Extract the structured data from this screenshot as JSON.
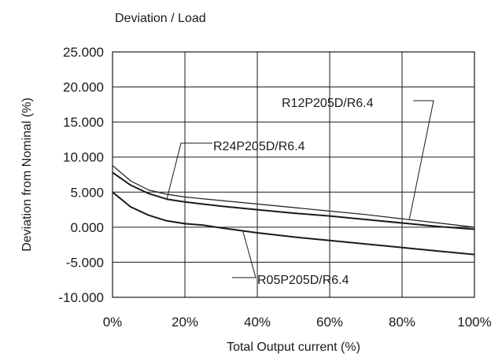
{
  "chart_data": {
    "type": "line",
    "title": "Deviation / Load",
    "xlabel": "Total Output current (%)",
    "ylabel": "Deviation from Nominal (%)",
    "xlim": [
      0,
      100
    ],
    "ylim": [
      -10,
      25
    ],
    "x_ticks": [
      "0%",
      "20%",
      "40%",
      "60%",
      "80%",
      "100%"
    ],
    "y_ticks": [
      "25.000",
      "20.000",
      "15.000",
      "10.000",
      "5.000",
      "0.000",
      "-5.000",
      "-10.000"
    ],
    "grid": true,
    "series": [
      {
        "name": "R12P205D/R6.4",
        "x": [
          0,
          5,
          10,
          15,
          20,
          30,
          40,
          50,
          60,
          70,
          80,
          90,
          100
        ],
        "y": [
          8.8,
          6.6,
          5.3,
          4.7,
          4.3,
          3.8,
          3.3,
          2.8,
          2.3,
          1.8,
          1.2,
          0.6,
          0.0
        ],
        "stroke_width": 1.2
      },
      {
        "name": "R24P205D/R6.4",
        "x": [
          0,
          5,
          10,
          15,
          20,
          30,
          40,
          50,
          60,
          70,
          80,
          90,
          100
        ],
        "y": [
          7.8,
          6.0,
          4.8,
          4.0,
          3.6,
          3.0,
          2.5,
          2.0,
          1.6,
          1.1,
          0.6,
          0.1,
          -0.3
        ],
        "stroke_width": 2.0
      },
      {
        "name": "R05P205D/R6.4",
        "x": [
          0,
          5,
          10,
          15,
          20,
          25,
          30,
          40,
          50,
          60,
          70,
          80,
          90,
          100
        ],
        "y": [
          5.0,
          2.9,
          1.7,
          0.9,
          0.5,
          0.3,
          -0.1,
          -0.8,
          -1.4,
          -1.9,
          -2.4,
          -2.9,
          -3.4,
          -3.9
        ],
        "stroke_width": 2.0
      }
    ],
    "annotations": [
      {
        "text": "R12P205D/R6.4",
        "series": 0,
        "x": 82
      },
      {
        "text": "R24P205D/R6.4",
        "series": 1,
        "x": 15
      },
      {
        "text": "R05P205D/R6.4",
        "series": 2,
        "x": 36
      }
    ],
    "colors": {
      "line": "#1a1a1a",
      "grid": "#1a1a1a",
      "background": "#ffffff"
    }
  }
}
